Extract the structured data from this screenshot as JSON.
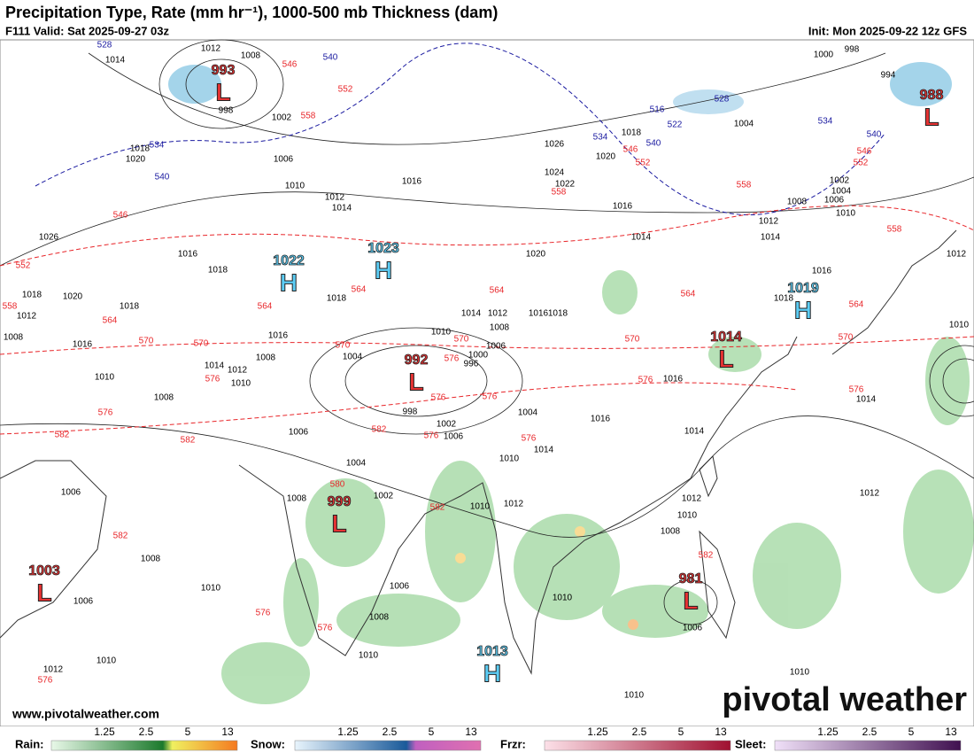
{
  "header": {
    "title": "Precipitation Type, Rate (mm hr⁻¹), 1000-500 mb Thickness (dam)",
    "valid": "F111 Valid: Sat 2025-09-27 03z",
    "init": "Init: Mon 2025-09-22 12z GFS"
  },
  "centers": [
    {
      "letter": "L",
      "value": "993"
    },
    {
      "letter": "L",
      "value": "988"
    },
    {
      "letter": "H",
      "value": "1022"
    },
    {
      "letter": "H",
      "value": "1023"
    },
    {
      "letter": "H",
      "value": "1019"
    },
    {
      "letter": "L",
      "value": "1014"
    },
    {
      "letter": "L",
      "value": "992"
    },
    {
      "letter": "L",
      "value": "999"
    },
    {
      "letter": "L",
      "value": "1003"
    },
    {
      "letter": "L",
      "value": "981"
    },
    {
      "letter": "H",
      "value": "1013"
    }
  ],
  "isobar_labels": [
    "1012",
    "1014",
    "1008",
    "998",
    "1002",
    "1006",
    "1010",
    "1018",
    "1020",
    "1026",
    "1016",
    "1018",
    "1012",
    "1014",
    "1016",
    "1018",
    "1020",
    "1014",
    "1016",
    "1022",
    "1024",
    "1026",
    "1020",
    "1018",
    "1004",
    "1002",
    "1004",
    "1006",
    "1008",
    "1010",
    "1012",
    "1014",
    "1016",
    "1018",
    "1012",
    "1000",
    "998",
    "994",
    "1016",
    "1014",
    "1016",
    "1014",
    "1004",
    "1006",
    "1002",
    "998",
    "996",
    "1000",
    "1004",
    "1006",
    "1008",
    "1010",
    "1014",
    "1012",
    "1016",
    "1018",
    "1016",
    "1008",
    "1014",
    "1012",
    "1010",
    "1008",
    "1010",
    "1016",
    "1018",
    "1018",
    "1020",
    "1012",
    "1008",
    "1006",
    "1004",
    "1002",
    "1008",
    "1006",
    "1008",
    "1010",
    "1006",
    "1010",
    "1012",
    "1006",
    "1008",
    "1010",
    "1010",
    "1012",
    "1010",
    "1014",
    "1012",
    "1010",
    "1008",
    "1010",
    "1006",
    "1012",
    "1010",
    "1010",
    "1010"
  ],
  "thickness_blue": [
    "528",
    "540",
    "534",
    "540",
    "516",
    "522",
    "528",
    "534",
    "540",
    "534",
    "540"
  ],
  "thickness_red": [
    "546",
    "552",
    "558",
    "546",
    "552",
    "558",
    "558",
    "546",
    "552",
    "558",
    "546",
    "552",
    "558",
    "564",
    "564",
    "564",
    "564",
    "564",
    "564",
    "570",
    "570",
    "570",
    "570",
    "576",
    "570",
    "570",
    "576",
    "576",
    "576",
    "576",
    "576",
    "576",
    "582",
    "582",
    "582",
    "576",
    "576",
    "580",
    "582",
    "582",
    "582",
    "576",
    "576",
    "576"
  ],
  "legend": [
    {
      "label": "Rain:",
      "ticks": [
        "1.25",
        "2.5",
        "5",
        "13"
      ]
    },
    {
      "label": "Snow:",
      "ticks": [
        "1.25",
        "2.5",
        "5",
        "13"
      ]
    },
    {
      "label": "Frzr:",
      "ticks": [
        "1.25",
        "2.5",
        "5",
        "13"
      ]
    },
    {
      "label": "Sleet:",
      "ticks": [
        "1.25",
        "2.5",
        "5",
        "13"
      ]
    }
  ],
  "watermark": "www.pivotalweather.com",
  "brand": "pivotal weather"
}
